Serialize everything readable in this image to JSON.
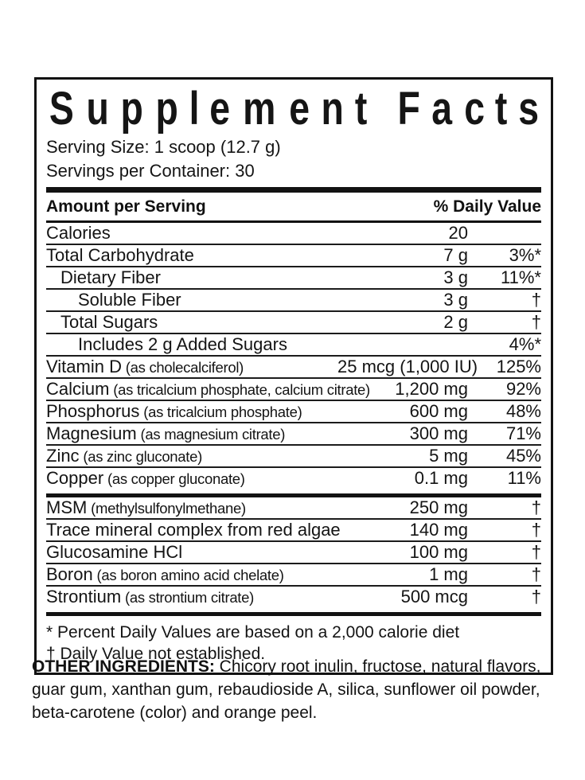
{
  "panel": {
    "title": "Supplement Facts",
    "serving_size": "Serving Size: 1 scoop (12.7 g)",
    "servings_per_container": "Servings per Container: 30",
    "header": {
      "amount_label": "Amount per Serving",
      "daily_value_label": "% Daily Value"
    },
    "rows_primary": [
      {
        "name": "Calories",
        "detail": "",
        "amount": "20",
        "dv": "",
        "indent": 0
      },
      {
        "name": "Total Carbohydrate",
        "detail": "",
        "amount": "7 g",
        "dv": "3%*",
        "indent": 0
      },
      {
        "name": "Dietary Fiber",
        "detail": "",
        "amount": "3 g",
        "dv": "11%*",
        "indent": 1
      },
      {
        "name": "Soluble Fiber",
        "detail": "",
        "amount": "3 g",
        "dv": "†",
        "indent": 2
      },
      {
        "name": "Total Sugars",
        "detail": "",
        "amount": "2 g",
        "dv": "†",
        "indent": 1
      },
      {
        "name": "Includes 2 g Added Sugars",
        "detail": "",
        "amount": "",
        "dv": "4%*",
        "indent": 2
      },
      {
        "name": "Vitamin D",
        "detail": "(as cholecalciferol)",
        "amount": "25 mcg (1,000 IU)",
        "dv": "125%",
        "indent": 0
      },
      {
        "name": "Calcium",
        "detail": "(as tricalcium phosphate, calcium citrate)",
        "amount": "1,200 mg",
        "dv": "92%",
        "indent": 0
      },
      {
        "name": "Phosphorus",
        "detail": "(as tricalcium phosphate)",
        "amount": "600 mg",
        "dv": "48%",
        "indent": 0
      },
      {
        "name": "Magnesium",
        "detail": "(as magnesium citrate)",
        "amount": "300 mg",
        "dv": "71%",
        "indent": 0
      },
      {
        "name": "Zinc",
        "detail": "(as zinc gluconate)",
        "amount": "5 mg",
        "dv": "45%",
        "indent": 0
      },
      {
        "name": "Copper",
        "detail": "(as copper gluconate)",
        "amount": "0.1 mg",
        "dv": "11%",
        "indent": 0
      }
    ],
    "rows_secondary": [
      {
        "name": "MSM",
        "detail": "(methylsulfonylmethane)",
        "amount": "250 mg",
        "dv": "†",
        "indent": 0
      },
      {
        "name": "Trace mineral complex from red algae",
        "detail": "",
        "amount": "140 mg",
        "dv": "†",
        "indent": 0
      },
      {
        "name": "Glucosamine HCl",
        "detail": "",
        "amount": "100 mg",
        "dv": "†",
        "indent": 0
      },
      {
        "name": "Boron",
        "detail": "(as boron amino acid chelate)",
        "amount": "1 mg",
        "dv": "†",
        "indent": 0
      },
      {
        "name": "Strontium",
        "detail": "(as strontium citrate)",
        "amount": "500 mcg",
        "dv": "†",
        "indent": 0
      }
    ],
    "footnotes": [
      "* Percent Daily Values are based on a 2,000 calorie diet",
      "† Daily Value not established."
    ]
  },
  "other_ingredients": {
    "label": "OTHER INGREDIENTS:",
    "text": " Chicory root inulin, fructose, natural flavors, guar gum, xanthan gum, rebaudioside A, silica, sunflower oil powder,  beta-carotene (color) and orange peel."
  }
}
